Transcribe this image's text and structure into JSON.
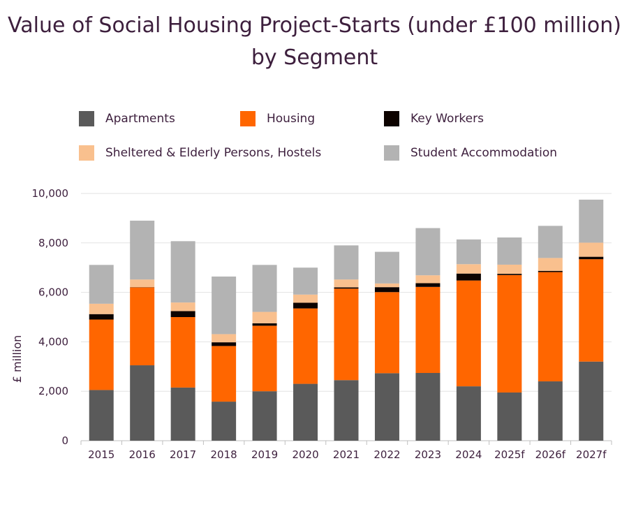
{
  "chart_data": {
    "type": "bar",
    "stacked": true,
    "title": "Value of Social Housing Project-Starts (under £100 million) by Segment",
    "xlabel": "",
    "ylabel": "£ million",
    "ylim": [
      0,
      10000
    ],
    "yticks": [
      0,
      2000,
      4000,
      6000,
      8000,
      10000
    ],
    "ytick_labels": [
      "0",
      "2,000",
      "4,000",
      "6,000",
      "8,000",
      "10,000"
    ],
    "grid": true,
    "legend_position": "top",
    "categories": [
      "2015",
      "2016",
      "2017",
      "2018",
      "2019",
      "2020",
      "2021",
      "2022",
      "2023",
      "2024",
      "2025f",
      "2026f",
      "2027f"
    ],
    "series": [
      {
        "name": "Apartments",
        "color": "#5a5a5a",
        "values": [
          2050,
          3050,
          2150,
          1580,
          2000,
          2300,
          2450,
          2730,
          2740,
          2200,
          1950,
          2400,
          3200
        ]
      },
      {
        "name": "Housing",
        "color": "#ff6600",
        "values": [
          2850,
          3150,
          2850,
          2250,
          2650,
          3050,
          3700,
          3280,
          3480,
          4280,
          4750,
          4420,
          4140
        ]
      },
      {
        "name": "Key Workers",
        "color": "#0d0300",
        "values": [
          220,
          10,
          240,
          150,
          100,
          230,
          50,
          200,
          150,
          280,
          50,
          50,
          100
        ]
      },
      {
        "name": "Sheltered & Elderly Persons, Hostels",
        "color": "#f9c08e",
        "values": [
          420,
          310,
          350,
          330,
          460,
          330,
          320,
          150,
          320,
          380,
          370,
          520,
          570
        ]
      },
      {
        "name": "Student Accommodation",
        "color": "#b3b3b3",
        "values": [
          1570,
          2380,
          2480,
          2330,
          1900,
          1090,
          1380,
          1280,
          1910,
          1000,
          1100,
          1300,
          1740
        ]
      }
    ]
  }
}
